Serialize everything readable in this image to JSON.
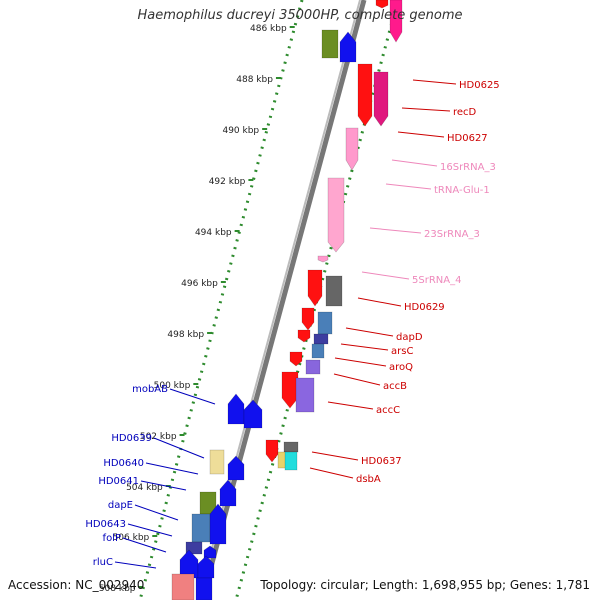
{
  "title": "Haemophilus ducreyi 35000HP, complete genome",
  "footer": {
    "accession": "Accession: NC_002940",
    "topology": "Topology: circular; Length: 1,698,955 bp; Genes: 1,781"
  },
  "ticks": [
    {
      "label": "486 kbp"
    },
    {
      "label": "488 kbp"
    },
    {
      "label": "490 kbp"
    },
    {
      "label": "492 kbp"
    },
    {
      "label": "494 kbp"
    },
    {
      "label": "496 kbp"
    },
    {
      "label": "498 kbp"
    },
    {
      "label": "500 kbp"
    },
    {
      "label": "502 kbp"
    },
    {
      "label": "504 kbp"
    },
    {
      "label": "506 kbp"
    },
    {
      "label": "508 kbp"
    }
  ],
  "colors": {
    "backbone": "#777777",
    "tick_dots": "#2e8b2e",
    "forward_label": "#cc0000",
    "rna_label": "#ee88bb",
    "reverse_label": "#0000bb"
  },
  "forward_labels": [
    {
      "name": "HD0625",
      "color": "#cc0000"
    },
    {
      "name": "recD",
      "color": "#cc0000"
    },
    {
      "name": "HD0627",
      "color": "#cc0000"
    },
    {
      "name": "16SrRNA_3",
      "color": "#ee88bb"
    },
    {
      "name": "tRNA-Glu-1",
      "color": "#ee88bb"
    },
    {
      "name": "23SrRNA_3",
      "color": "#ee88bb"
    },
    {
      "name": "5SrRNA_4",
      "color": "#ee88bb"
    },
    {
      "name": "HD0629",
      "color": "#cc0000"
    },
    {
      "name": "dapD",
      "color": "#cc0000"
    },
    {
      "name": "arsC",
      "color": "#cc0000"
    },
    {
      "name": "aroQ",
      "color": "#cc0000"
    },
    {
      "name": "accB",
      "color": "#cc0000"
    },
    {
      "name": "accC",
      "color": "#cc0000"
    },
    {
      "name": "HD0637",
      "color": "#cc0000"
    },
    {
      "name": "dsbA",
      "color": "#cc0000"
    }
  ],
  "reverse_labels": [
    {
      "name": "mobAB",
      "color": "#0000bb"
    },
    {
      "name": "HD0639",
      "color": "#0000bb"
    },
    {
      "name": "HD0640",
      "color": "#0000bb"
    },
    {
      "name": "HD0641",
      "color": "#0000bb"
    },
    {
      "name": "dapE",
      "color": "#0000bb"
    },
    {
      "name": "HD0643",
      "color": "#0000bb"
    },
    {
      "name": "folP",
      "color": "#0000bb"
    },
    {
      "name": "rluC",
      "color": "#0000bb"
    }
  ]
}
